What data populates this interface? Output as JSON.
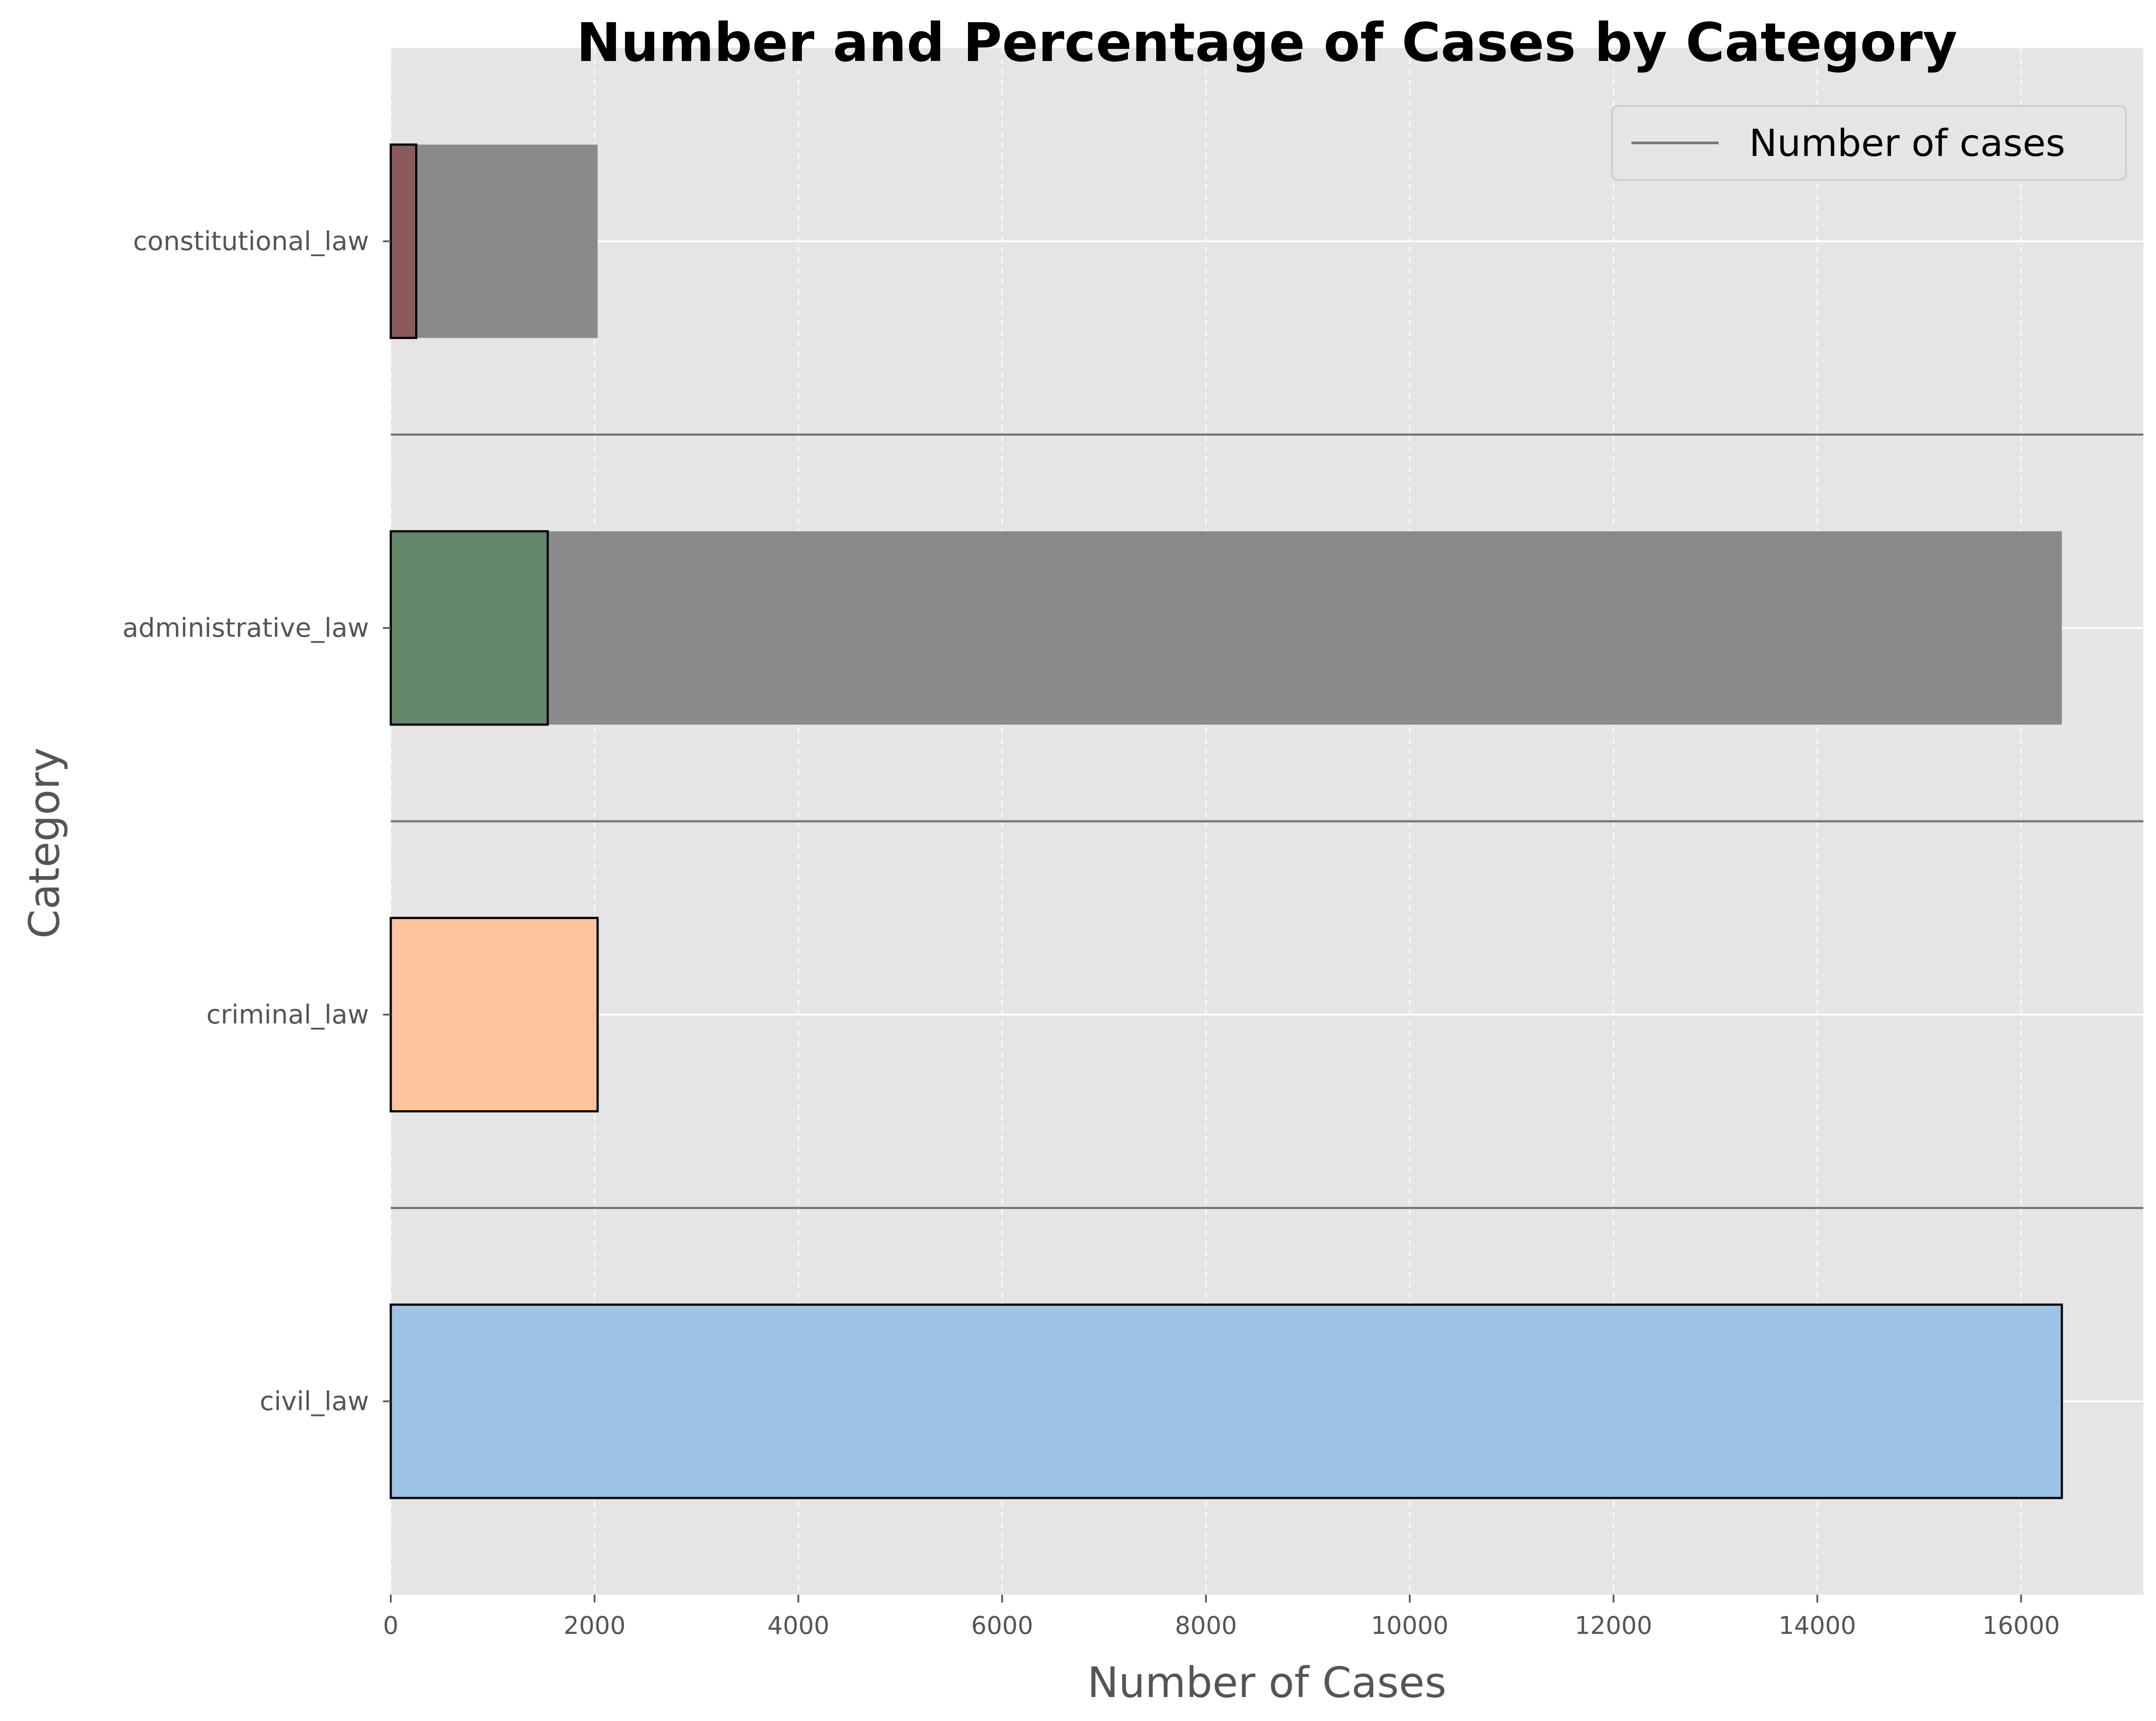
{
  "chart_data": {
    "type": "bar",
    "orientation": "horizontal",
    "title": "Number and Percentage of Cases by Category",
    "xlabel": "Number of Cases",
    "ylabel": "Category",
    "categories": [
      "civil_law",
      "criminal_law",
      "administrative_law",
      "constitutional_law"
    ],
    "values": [
      16400,
      2030,
      1540,
      250
    ],
    "bar_colors": [
      "#9dc3e6",
      "#fdc49f",
      "#65886a",
      "#8b5a5a"
    ],
    "background_bars": [
      {
        "category": "administrative_law",
        "value": 16400
      },
      {
        "category": "constitutional_law",
        "value": 2030
      }
    ],
    "background_color": "#8a8a8a",
    "xlim": [
      0,
      17200
    ],
    "xticks": [
      0,
      2000,
      4000,
      6000,
      8000,
      10000,
      12000,
      14000,
      16000
    ],
    "grid": true,
    "legend": {
      "entries": [
        "Number of cases"
      ],
      "placement": "top-right",
      "line_color": "#777777"
    },
    "colors": {
      "plot_background": "#e5e5e5",
      "grid": "#ffffff",
      "separator": "#777777",
      "bar_edge": "#000000",
      "text": "#555555",
      "title": "#000000"
    }
  }
}
